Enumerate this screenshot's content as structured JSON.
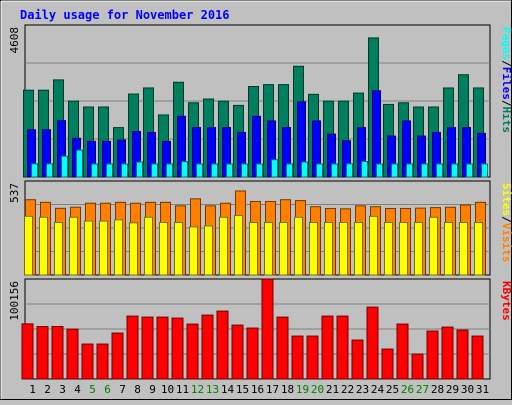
{
  "chart_data": {
    "type": "bar",
    "title": "Daily usage for November 2016",
    "categories": [
      "1",
      "2",
      "3",
      "4",
      "5",
      "6",
      "7",
      "8",
      "9",
      "10",
      "11",
      "12",
      "13",
      "14",
      "15",
      "16",
      "17",
      "18",
      "19",
      "20",
      "21",
      "22",
      "23",
      "24",
      "25",
      "26",
      "27",
      "28",
      "29",
      "30",
      "31"
    ],
    "weekend_days": [
      "5",
      "6",
      "12",
      "13",
      "19",
      "20",
      "26",
      "27"
    ],
    "panels": [
      {
        "id": "hits-files-pages",
        "ylabel_parts": [
          "Pages",
          "Files",
          "Hits"
        ],
        "ymax": 4608,
        "ymax_label": "4608",
        "series": [
          {
            "name": "Hits",
            "color": "#007f5f",
            "values": [
              2631,
              2631,
              2944,
              2301,
              2122,
              2122,
              1498,
              2515,
              2700,
              1881,
              2872,
              2251,
              2364,
              2300,
              2171,
              2743,
              2800,
              2800,
              3357,
              2506,
              2300,
              2300,
              2544,
              4217,
              2200,
              2251,
              2122,
              2122,
              2700,
              3100,
              2700
            ]
          },
          {
            "name": "Files",
            "color": "#0000ff",
            "values": [
              1431,
              1431,
              1708,
              1174,
              1080,
              1080,
              1121,
              1379,
              1351,
              1080,
              1840,
              1498,
              1498,
              1498,
              1351,
              1840,
              1700,
              1498,
              2278,
              1700,
              1300,
              1100,
              1498,
              2615,
              1241,
              1700,
              1241,
              1351,
              1498,
              1498,
              1322
            ]
          },
          {
            "name": "Pages",
            "color": "#00ffff",
            "values": [
              400,
              400,
              630,
              813,
              395,
              395,
              395,
              454,
              395,
              395,
              464,
              395,
              395,
              395,
              395,
              395,
              525,
              395,
              454,
              395,
              395,
              400,
              468,
              395,
              395,
              395,
              395,
              395,
              395,
              395,
              395
            ]
          }
        ]
      },
      {
        "id": "visits-sites",
        "ylabel_parts": [
          "Sites",
          "Visits"
        ],
        "ymax": 537,
        "ymax_label": "537",
        "series": [
          {
            "name": "Visits",
            "color": "#ff8000",
            "values": [
              430,
              415,
              381,
              387,
              410,
              410,
              415,
              410,
              415,
              415,
              395,
              435,
              395,
              410,
              480,
              420,
              420,
              430,
              425,
              390,
              380,
              378,
              395,
              390,
              380,
              380,
              382,
              385,
              387,
              400,
              415
            ]
          },
          {
            "name": "Sites",
            "color": "#ffff00",
            "values": [
              335,
              330,
              300,
              330,
              308,
              308,
              315,
              298,
              330,
              300,
              300,
              275,
              280,
              330,
              340,
              300,
              300,
              300,
              330,
              300,
              300,
              300,
              300,
              335,
              300,
              300,
              300,
              330,
              300,
              300,
              300
            ]
          }
        ]
      },
      {
        "id": "kbytes",
        "ylabel_parts": [
          "KBytes"
        ],
        "ymax": 100156,
        "ymax_label": "100156",
        "series": [
          {
            "name": "KBytes",
            "color": "#ff0000",
            "values": [
              55200,
              52500,
              52600,
              50000,
              35000,
              35000,
              46000,
              63000,
              62000,
              62000,
              61000,
              55000,
              64000,
              68000,
              54000,
              51000,
              100000,
              62000,
              43000,
              43000,
              63000,
              63000,
              39000,
              72000,
              30000,
              55000,
              25000,
              48000,
              52000,
              49000,
              43000
            ]
          }
        ]
      }
    ]
  }
}
